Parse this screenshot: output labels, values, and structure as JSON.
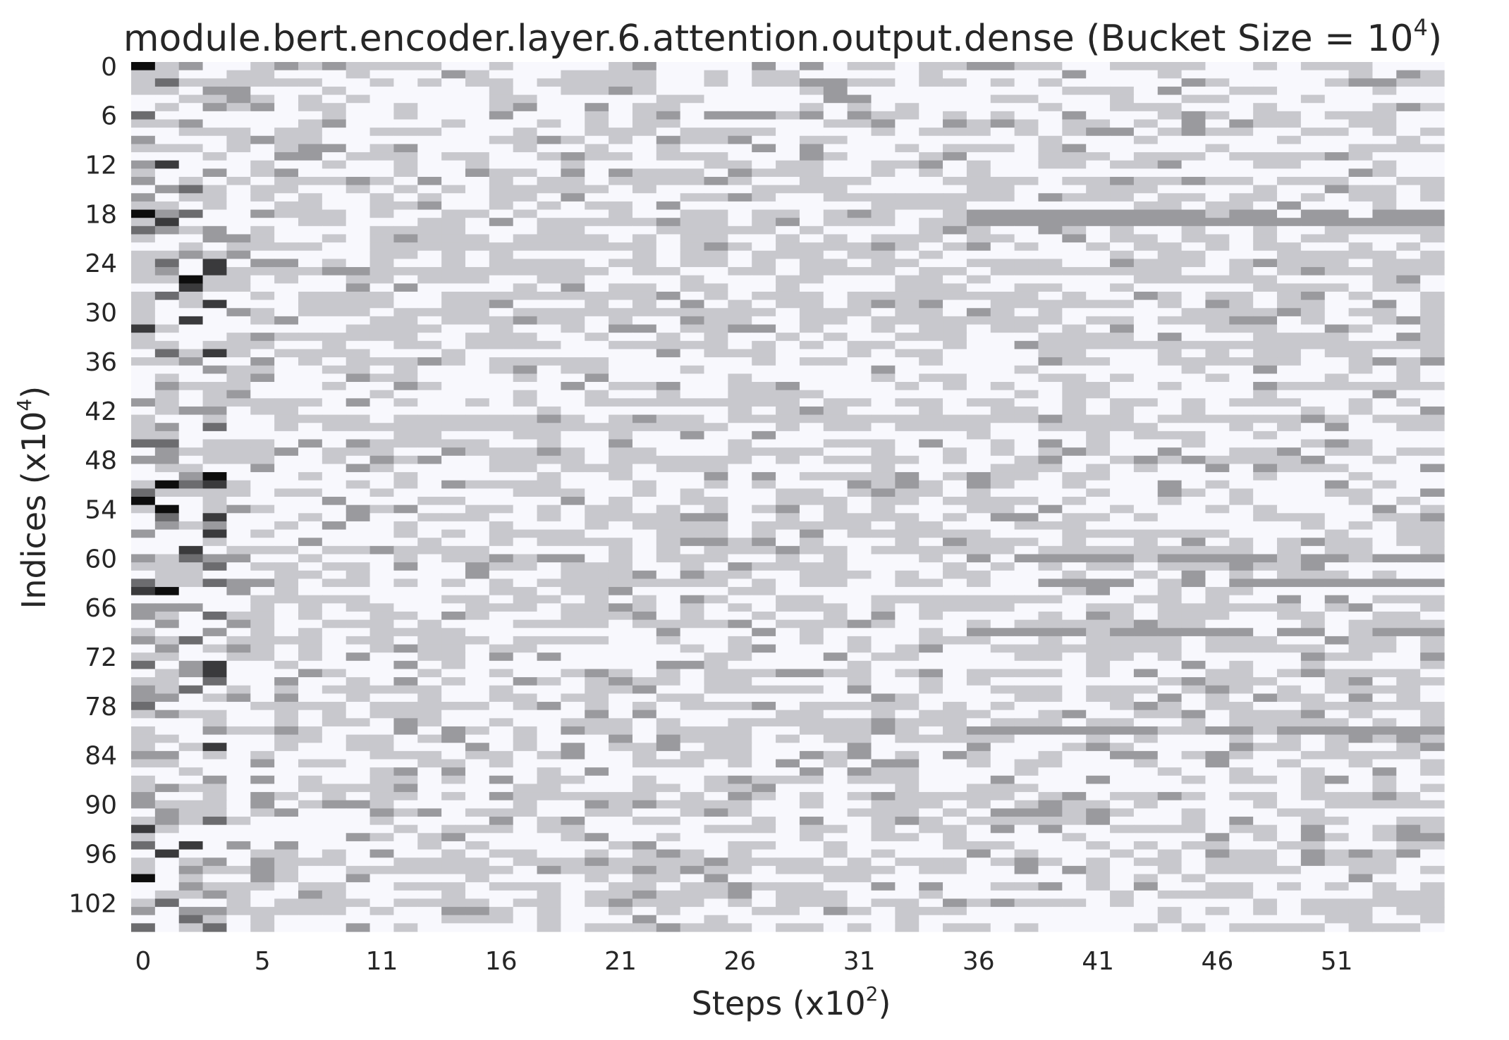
{
  "chart_data": {
    "type": "heatmap",
    "title_main": "module.bert.encoder.layer.6.attention.output.dense (Bucket Size = 10",
    "title_exp": "4",
    "title_end": ")",
    "xlabel_main": "Steps (x10",
    "xlabel_exp": "2",
    "xlabel_end": ")",
    "ylabel_main": "Indices (x10",
    "ylabel_exp": "4",
    "ylabel_end": ")",
    "x_ticks": [
      "0",
      "5",
      "11",
      "16",
      "21",
      "26",
      "31",
      "36",
      "41",
      "46",
      "51"
    ],
    "x_tick_positions": [
      0,
      5,
      10,
      15,
      20,
      25,
      30,
      35,
      40,
      45,
      50
    ],
    "y_ticks": [
      "0",
      "6",
      "12",
      "18",
      "24",
      "30",
      "36",
      "42",
      "48",
      "54",
      "60",
      "66",
      "72",
      "78",
      "84",
      "90",
      "96",
      "102"
    ],
    "y_tick_positions": [
      0,
      6,
      12,
      18,
      24,
      30,
      36,
      42,
      48,
      54,
      60,
      66,
      72,
      78,
      84,
      90,
      96,
      102
    ],
    "n_steps": 55,
    "n_indices": 106,
    "colormap": [
      "#f8f8fd",
      "#c8c8cd",
      "#9a9a9e",
      "#6c6c6f",
      "#3a3a3c",
      "#0d0d0d"
    ],
    "values_note": "Cell intensity levels 0 (lightest) to 5 (darkest); most cells are level 0 or 1, with darker bands at several index rows.",
    "dark_rows": [
      18,
      19,
      60,
      63,
      69,
      81
    ],
    "grid": false,
    "legend": "none"
  }
}
